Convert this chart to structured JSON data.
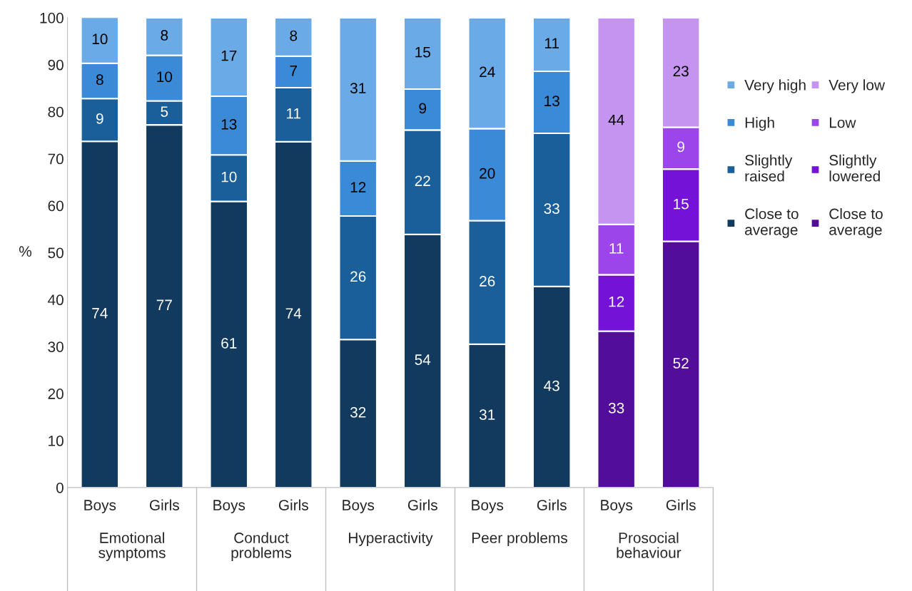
{
  "chart_data": {
    "type": "bar",
    "stacked": true,
    "ylabel": "%",
    "categories": [
      "Boys",
      "Girls",
      "Boys",
      "Girls",
      "Boys",
      "Girls",
      "Boys",
      "Girls",
      "Boys",
      "Girls"
    ],
    "ylim": [
      0,
      100
    ],
    "yticks": [
      0,
      10,
      20,
      30,
      40,
      50,
      60,
      70,
      80,
      90,
      100
    ],
    "grid": false,
    "legend": "right",
    "series": [
      {
        "name": "Close to\naverage",
        "color": "#123a5e",
        "values": [
          73.7,
          77.2,
          60.9,
          73.6,
          31.5,
          53.9,
          30.5,
          42.8,
          null,
          null
        ],
        "value_labels": [
          "74",
          "77",
          "61",
          "74",
          "32",
          "54",
          "31",
          "43",
          null,
          null
        ]
      },
      {
        "name": "Slightly\nraised",
        "color": "#1a5f9a",
        "values": [
          9.1,
          5.1,
          9.9,
          11.5,
          26.3,
          22.2,
          26.3,
          32.6,
          null,
          null
        ],
        "value_labels": [
          "9",
          "5",
          "10",
          "11",
          "26",
          "22",
          "26",
          "33",
          null,
          null
        ]
      },
      {
        "name": "High",
        "color": "#3a8ad8",
        "values": [
          7.5,
          9.7,
          12.5,
          6.7,
          11.7,
          8.7,
          19.6,
          13.2,
          null,
          null
        ],
        "value_labels": [
          "8",
          "10",
          "13",
          "7",
          "12",
          "9",
          "20",
          "13",
          null,
          null
        ]
      },
      {
        "name": "Very high",
        "color": "#6aaae6",
        "values": [
          9.8,
          8.0,
          16.7,
          8.2,
          30.5,
          15.2,
          23.6,
          11.4,
          null,
          null
        ],
        "value_labels": [
          "10",
          "8",
          "17",
          "8",
          "31",
          "15",
          "24",
          "11",
          null,
          null
        ]
      },
      {
        "name": "Close to\naverage",
        "color": "#520d9a",
        "values": [
          null,
          null,
          null,
          null,
          null,
          null,
          null,
          null,
          33.3,
          52.4
        ],
        "value_labels": [
          null,
          null,
          null,
          null,
          null,
          null,
          null,
          null,
          "33",
          "52"
        ]
      },
      {
        "name": "Slightly\nlowered",
        "color": "#7412d8",
        "values": [
          null,
          null,
          null,
          null,
          null,
          null,
          null,
          null,
          12.0,
          15.4
        ],
        "value_labels": [
          null,
          null,
          null,
          null,
          null,
          null,
          null,
          null,
          "12",
          "15"
        ]
      },
      {
        "name": "Low",
        "color": "#9c45ea",
        "values": [
          null,
          null,
          null,
          null,
          null,
          null,
          null,
          null,
          10.7,
          8.9
        ],
        "value_labels": [
          null,
          null,
          null,
          null,
          null,
          null,
          null,
          null,
          "11",
          "9"
        ]
      },
      {
        "name": "Very low",
        "color": "#c594f0",
        "values": [
          null,
          null,
          null,
          null,
          null,
          null,
          null,
          null,
          44.0,
          23.3
        ],
        "value_labels": [
          null,
          null,
          null,
          null,
          null,
          null,
          null,
          null,
          "44",
          "23"
        ]
      }
    ],
    "annotations": [
      "Emotional\nsymptoms",
      "Conduct\nproblems",
      "Hyperactivity",
      "Peer problems",
      "Prosocial\nbehaviour"
    ]
  }
}
